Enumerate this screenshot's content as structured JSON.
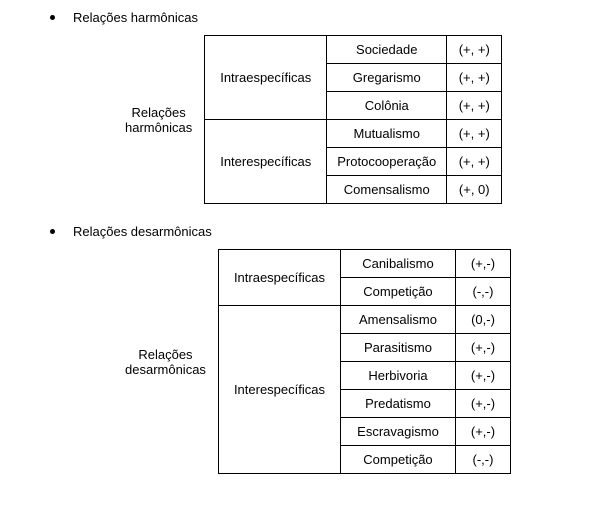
{
  "sections": [
    {
      "heading": "Relações harmônicas",
      "title_lines": [
        "Relações",
        "harmônicas"
      ],
      "groups": [
        {
          "category": "Intraespecíficas",
          "rows": [
            {
              "name": "Sociedade",
              "symbol": "(+, +)"
            },
            {
              "name": "Gregarismo",
              "symbol": "(+, +)"
            },
            {
              "name": "Colônia",
              "symbol": "(+, +)"
            }
          ]
        },
        {
          "category": "Interespecíficas",
          "rows": [
            {
              "name": "Mutualismo",
              "symbol": "(+, +)"
            },
            {
              "name": "Protocooperação",
              "symbol": "(+, +)"
            },
            {
              "name": "Comensalismo",
              "symbol": "(+, 0)"
            }
          ]
        }
      ]
    },
    {
      "heading": "Relações desarmônicas",
      "title_lines": [
        "Relações",
        "desarmônicas"
      ],
      "groups": [
        {
          "category": "Intraespecíficas",
          "rows": [
            {
              "name": "Canibalismo",
              "symbol": "(+,-)"
            },
            {
              "name": "Competição",
              "symbol": "(-,-)"
            }
          ]
        },
        {
          "category": "Interespecíficas",
          "rows": [
            {
              "name": "Amensalismo",
              "symbol": "(0,-)"
            },
            {
              "name": "Parasitismo",
              "symbol": "(+,-)"
            },
            {
              "name": "Herbivoria",
              "symbol": "(+,-)"
            },
            {
              "name": "Predatismo",
              "symbol": "(+,-)"
            },
            {
              "name": "Escravagismo",
              "symbol": "(+,-)"
            },
            {
              "name": "Competição",
              "symbol": "(-,-)"
            }
          ]
        }
      ]
    }
  ],
  "style": {
    "font_family": "Arial, sans-serif",
    "font_size_pt": 10,
    "border_color": "#000000",
    "text_color": "#000000",
    "background_color": "#ffffff"
  }
}
